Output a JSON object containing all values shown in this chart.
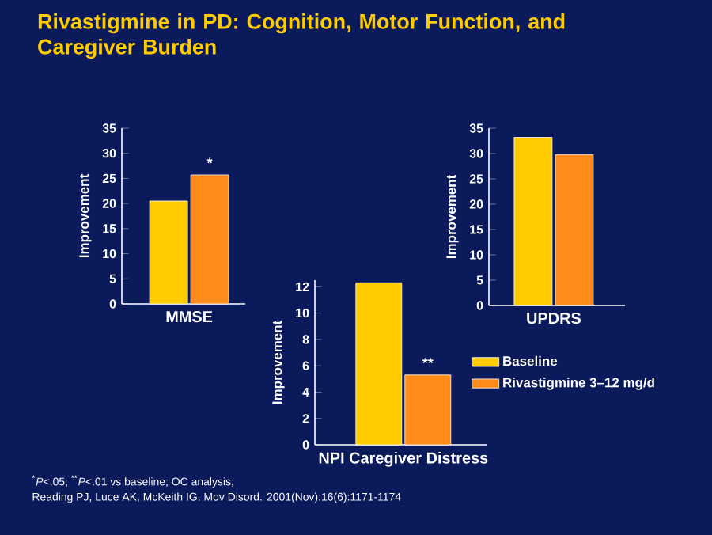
{
  "chart_data": [
    {
      "type": "bar",
      "title": "Rivastigmine in PD: Cognition, Motor Function, and Caregiver Burden",
      "categories": [
        "MMSE"
      ],
      "ylabel": "Improvement",
      "ylim": [
        0,
        35
      ],
      "yticks": [
        0,
        5,
        10,
        15,
        20,
        25,
        30,
        35
      ],
      "series": [
        {
          "color": "#ffcc00",
          "values": [
            20.5
          ]
        },
        {
          "color": "#ff8c1a",
          "values": [
            25.7
          ]
        }
      ],
      "annotations": [
        {
          "text": "*",
          "y": 25.7
        },
        "$^{*}$*P*<.05; $^{**}$*P*<.01 vs baseline; OC analysis;",
        "Reading PJ, Luce AK, McKeith IG. Mov Disord. 2001(Nov):16(6):1171-1174"
      ]
    },
    {
      "type": "bar",
      "categories": [
        "UPDRS"
      ],
      "ylabel": "Improvement",
      "ylim": [
        0,
        35
      ],
      "yticks": [
        0,
        5,
        10,
        15,
        20,
        25,
        30,
        35
      ],
      "series": [
        {
          "color": "#ffcc00",
          "values": [
            33.2
          ]
        },
        {
          "color": "#ff8c1a",
          "values": [
            29.8
          ]
        }
      ]
    },
    {
      "type": "bar",
      "categories": [
        "NPI Caregiver Distress"
      ],
      "ylabel": "Improvement",
      "ylim": [
        0,
        12.5
      ],
      "yticks": [
        0,
        2,
        4,
        6,
        8,
        10,
        12
      ],
      "series": [
        {
          "name": "Baseline",
          "color": "#ffcc00",
          "values": [
            12.3
          ]
        },
        {
          "name": "Rivastigmine 3–12 mg/d",
          "color": "#ff8c1a",
          "values": [
            5.3
          ]
        }
      ],
      "annotations": [
        {
          "text": "**",
          "y": 5.3
        }
      ],
      "legend": "right"
    }
  ]
}
